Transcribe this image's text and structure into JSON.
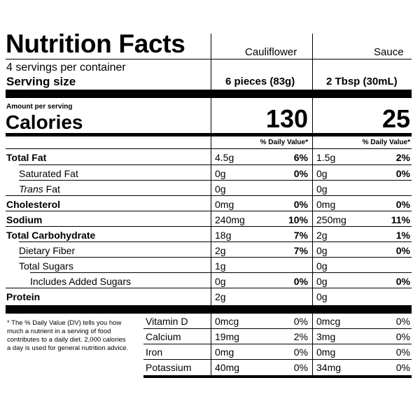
{
  "title": "Nutrition Facts",
  "servings_per_container": "4 servings per container",
  "serving_size_label": "Serving size",
  "amount_per_serving": "Amount per serving",
  "calories_label": "Calories",
  "dv_header": "% Daily Value*",
  "columns": [
    {
      "name": "Cauliflower",
      "serving": "6 pieces (83g)",
      "calories": "130"
    },
    {
      "name": "Sauce",
      "serving": "2 Tbsp (30mL)",
      "calories": "25"
    }
  ],
  "nutrients": [
    {
      "label": "Total Fat",
      "values": [
        "4.5g",
        "1.5g"
      ],
      "dv": [
        "6%",
        "2%"
      ]
    },
    {
      "label": "Saturated Fat",
      "values": [
        "0g",
        "0g"
      ],
      "dv": [
        "0%",
        "0%"
      ]
    },
    {
      "label_italic": "Trans",
      "label_rest": " Fat",
      "values": [
        "0g",
        "0g"
      ],
      "dv": [
        "",
        ""
      ]
    },
    {
      "label": "Cholesterol",
      "values": [
        "0mg",
        "0mg"
      ],
      "dv": [
        "0%",
        "0%"
      ]
    },
    {
      "label": "Sodium",
      "values": [
        "240mg",
        "250mg"
      ],
      "dv": [
        "10%",
        "11%"
      ]
    },
    {
      "label": "Total Carbohydrate",
      "values": [
        "18g",
        "2g"
      ],
      "dv": [
        "7%",
        "1%"
      ]
    },
    {
      "label": "Dietary Fiber",
      "values": [
        "2g",
        "0g"
      ],
      "dv": [
        "7%",
        "0%"
      ]
    },
    {
      "label": "Total Sugars",
      "values": [
        "1g",
        "0g"
      ],
      "dv": [
        "",
        ""
      ]
    },
    {
      "label": "Includes Added Sugars",
      "values": [
        "0g",
        "0g"
      ],
      "dv": [
        "0%",
        "0%"
      ]
    },
    {
      "label": "Protein",
      "values": [
        "2g",
        "0g"
      ],
      "dv": [
        "",
        ""
      ]
    }
  ],
  "footnote": "* The % Daily Value (DV) tells you how much a nutrient in a serving of food contributes to a daily diet. 2,000 calories a day is used for general nutrition advice.",
  "minerals": [
    {
      "label": "Vitamin D",
      "values": [
        "0mcg",
        "0mcg"
      ],
      "dv": [
        "0%",
        "0%"
      ]
    },
    {
      "label": "Calcium",
      "values": [
        "19mg",
        "3mg"
      ],
      "dv": [
        "2%",
        "0%"
      ]
    },
    {
      "label": "Iron",
      "values": [
        "0mg",
        "0mg"
      ],
      "dv": [
        "0%",
        "0%"
      ]
    },
    {
      "label": "Potassium",
      "values": [
        "40mg",
        "34mg"
      ],
      "dv": [
        "0%",
        "0%"
      ]
    }
  ]
}
